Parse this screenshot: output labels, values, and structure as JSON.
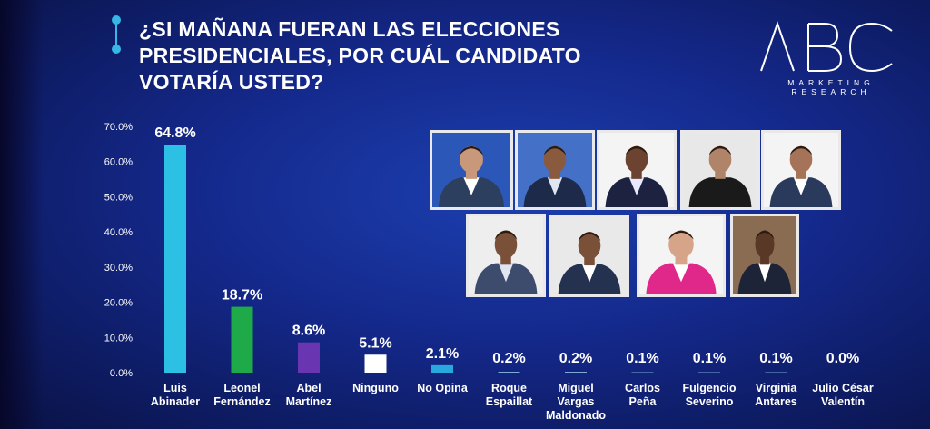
{
  "title_lines": [
    "¿SI MAÑANA FUERAN LAS ELECCIONES",
    "PRESIDENCIALES, POR  CUÁL CANDIDATO",
    "VOTARÍA USTED?"
  ],
  "logo": {
    "mark": "ABC",
    "sub": "MARKETING RESEARCH"
  },
  "colors": {
    "accent": "#36b7e6",
    "background": "#14288a"
  },
  "chart_data": {
    "type": "bar",
    "title": "¿SI MAÑANA FUERAN LAS ELECCIONES PRESIDENCIALES, POR  CUÁL CANDIDATO VOTARÍA USTED?",
    "xlabel": "",
    "ylabel": "",
    "ylim": [
      0,
      70
    ],
    "yticks": [
      "0.0%",
      "10.0%",
      "20.0%",
      "30.0%",
      "40.0%",
      "50.0%",
      "60.0%",
      "70.0%"
    ],
    "grid": false,
    "categories": [
      [
        "Luis",
        "Abinader"
      ],
      [
        "Leonel",
        "Fernández"
      ],
      [
        "Abel",
        "Martínez"
      ],
      [
        "Ninguno"
      ],
      [
        "No Opina"
      ],
      [
        "Roque",
        "Espaillat"
      ],
      [
        "Miguel",
        "Vargas",
        "Maldonado"
      ],
      [
        "Carlos",
        "Peña"
      ],
      [
        "Fulgencio",
        "Severino"
      ],
      [
        "Virginia",
        "Antares"
      ],
      [
        "Julio César",
        "Valentín"
      ]
    ],
    "values": [
      64.8,
      18.7,
      8.6,
      5.1,
      2.1,
      0.2,
      0.2,
      0.1,
      0.1,
      0.1,
      0.0
    ],
    "value_labels": [
      "64.8%",
      "18.7%",
      "8.6%",
      "5.1%",
      "2.1%",
      "0.2%",
      "0.2%",
      "0.1%",
      "0.1%",
      "0.1%",
      "0.0%"
    ],
    "bar_colors": [
      "#2bc0e4",
      "#1faa4a",
      "#6a35b0",
      "#ffffff",
      "#29a8e0",
      "#9ad3f0",
      "#9ad3f0",
      "#9ad3f0",
      "#9ad3f0",
      "#9ad3f0",
      "#9ad3f0"
    ]
  },
  "photos": [
    {
      "shirt": "#ffffff",
      "suit": "#2c3f5e",
      "skin": "#c9987a",
      "bg": "#2b58b8"
    },
    {
      "shirt": "#dfe6f2",
      "suit": "#1d2a4a",
      "skin": "#8a5a3e",
      "bg": "#4470c8"
    },
    {
      "shirt": "#e8e8ff",
      "suit": "#1c2240",
      "skin": "#6b4330",
      "bg": "#f4f4f4"
    },
    {
      "shirt": "#1a1a1a",
      "suit": "#1a1a1a",
      "skin": "#b08468",
      "bg": "#e8e8e8"
    },
    {
      "shirt": "#ffffff",
      "suit": "#2a3a5c",
      "skin": "#a57458",
      "bg": "#f4f4f4"
    },
    {
      "shirt": "#dfe6f2",
      "suit": "#3d4c6c",
      "skin": "#7a5038",
      "bg": "#eeeeee"
    },
    {
      "shirt": "#ffffff",
      "suit": "#24324f",
      "skin": "#7a5038",
      "bg": "#e9e9e9"
    },
    {
      "shirt": "#ffffff",
      "suit": "#e0288a",
      "skin": "#d6a488",
      "bg": "#f4f4f4"
    },
    {
      "shirt": "#ffffff",
      "suit": "#1d2438",
      "skin": "#5a3826",
      "bg": "#8a6c52"
    }
  ]
}
